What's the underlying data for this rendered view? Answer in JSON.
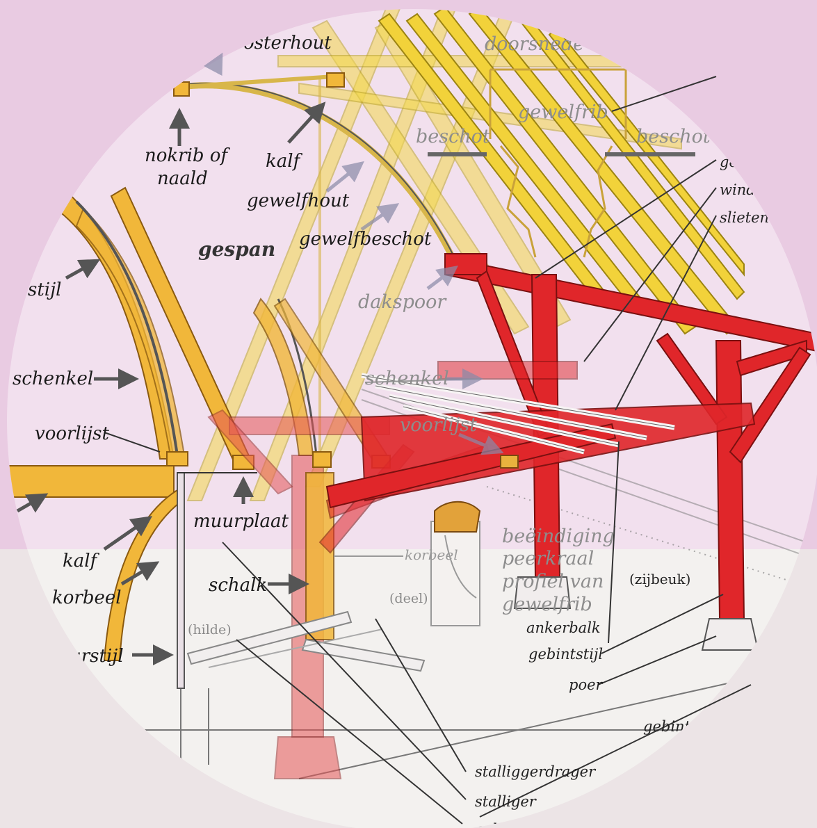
{
  "colors": {
    "background_top": "#e9cbe2",
    "background_bottom": "#ece4e6",
    "circle_top": "#f2e0ee",
    "circle_bottom": "#f3f1ef",
    "timber_yellow": "#f2d23a",
    "timber_orange": "#f1b73a",
    "timber_red": "#e0262a"
  },
  "labels": {
    "kloosterhout": "osterhout",
    "doorsnede": "doorsnede",
    "gewelfrib": "gewelfrib",
    "beschot_left": "beschot",
    "beschot_right": "beschot",
    "nokrib_line1": "nokrib of",
    "nokrib_line2": "naald",
    "kalf_top": "kalf",
    "gewelfhout": "gewelfhout",
    "gewelfbeschot": "gewelfbeschot",
    "gespan": "gespan",
    "gebint_cut": "ge",
    "windschoor_cut": "winds",
    "slieten": "slieten",
    "stijl": "stijl",
    "dakspoor": "dakspoor",
    "schenkel_left": "schenkel",
    "schenkel_mid": "schenkel",
    "voorlijst_left": "voorlijst",
    "voorlijst_mid": "voorlijst",
    "muurplaat": "muurplaat",
    "beeindiging_line1": "beëindiging",
    "beeindiging_line2": "peerkraal",
    "beeindiging_line3": "profiel van",
    "beeindiging_line4": "gewelfrib",
    "korbeel_mid": "korbeel",
    "kalf_bottom": "kalf",
    "korbeel_left": "korbeel",
    "schalk": "schalk",
    "deel": "(deel)",
    "zijbeuk": "(zijbeuk)",
    "hilde": "(hilde)",
    "ankerbalk": "ankerbalk",
    "muurstijl": "urstijl",
    "gebintstijl": "gebintstijl",
    "poer": "poer",
    "gebintstijl_cut": "gebintst",
    "stalliggerdrager": "stalliggerdrager",
    "stalliger": "stalliger",
    "bottom_cut": "aal"
  }
}
